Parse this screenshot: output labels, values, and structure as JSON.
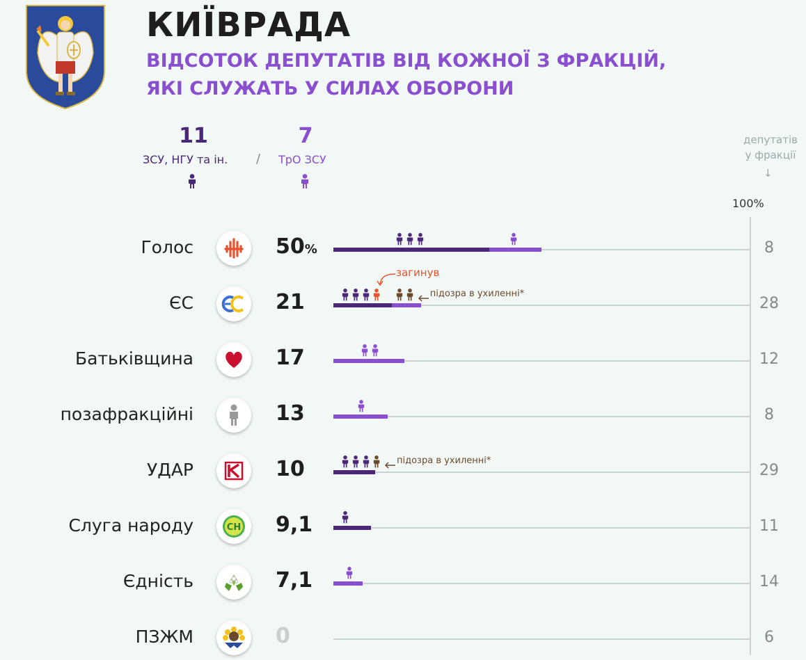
{
  "title": "КИЇВРАДА",
  "subtitle": [
    "ВІДСОТОК ДЕПУТАТІВ ВІД КОЖНОЇ З ФРАКЦІЙ,",
    "ЯКІ СЛУЖАТЬ У СИЛАХ ОБОРОНИ"
  ],
  "legend": [
    {
      "value": "11",
      "label": "ЗСУ, НГУ та ін.",
      "color": "#4a2777"
    },
    {
      "value": "7",
      "label": "ТрО ЗСУ",
      "color": "#8a4fcf"
    }
  ],
  "legend_separator": "/",
  "right_header": [
    "депутатів",
    "у фракції"
  ],
  "right_header_arrow": "↓",
  "axis_max_label": "100%",
  "percent_symbol": "%",
  "colors": {
    "zsu": "#4a2777",
    "tro": "#8a4fcf",
    "killed": "#e8522d",
    "suspect": "#6b4a2b",
    "track": "#c8d4d2"
  },
  "chart_data": {
    "type": "bar",
    "xlim": [
      0,
      100
    ],
    "series": [
      {
        "name": "ЗСУ, НГУ та ін."
      },
      {
        "name": "ТрО ЗСУ"
      }
    ],
    "categories": [
      "Голос",
      "ЄС",
      "Батьківщина",
      "позафракційні",
      "УДАР",
      "Слуга народу",
      "Єдність",
      "ПЗЖМ"
    ],
    "values": [
      50,
      21,
      17,
      13,
      10,
      9.1,
      7.1,
      0
    ],
    "value_labels": [
      "50",
      "21",
      "17",
      "13",
      "10",
      "9,1",
      "7,1",
      "0"
    ],
    "totals": [
      8,
      28,
      12,
      8,
      29,
      11,
      14,
      6
    ],
    "rows": [
      {
        "party": "Голос",
        "logo": "holos-icon",
        "value": 50,
        "label": "50",
        "total": 8,
        "zsu": 3,
        "tro": 1
      },
      {
        "party": "ЄС",
        "logo": "es-icon",
        "value": 21,
        "label": "21",
        "total": 28,
        "zsu": 4,
        "tro": 2,
        "killed": 1,
        "suspect": 2,
        "annotations": [
          "загинув",
          "підозра в ухиленні*"
        ]
      },
      {
        "party": "Батьківщина",
        "logo": "heart-icon",
        "value": 17,
        "label": "17",
        "total": 12,
        "zsu": 0,
        "tro": 2
      },
      {
        "party": "позафракційні",
        "logo": "person-icon",
        "value": 13,
        "label": "13",
        "total": 8,
        "zsu": 0,
        "tro": 1
      },
      {
        "party": "УДАР",
        "logo": "udar-icon",
        "value": 10,
        "label": "10",
        "total": 29,
        "zsu": 3,
        "tro": 0,
        "suspect": 1,
        "annotations": [
          "підозра в ухиленні*"
        ]
      },
      {
        "party": "Слуга народу",
        "logo": "sn-icon",
        "value": 9.1,
        "label": "9,1",
        "total": 11,
        "zsu": 1,
        "tro": 0
      },
      {
        "party": "Єдність",
        "logo": "chestnut-icon",
        "value": 7.1,
        "label": "7,1",
        "total": 14,
        "zsu": 0,
        "tro": 1
      },
      {
        "party": "ПЗЖМ",
        "logo": "sunflower-icon",
        "value": 0,
        "label": "0",
        "total": 6,
        "zsu": 0,
        "tro": 0
      }
    ]
  }
}
